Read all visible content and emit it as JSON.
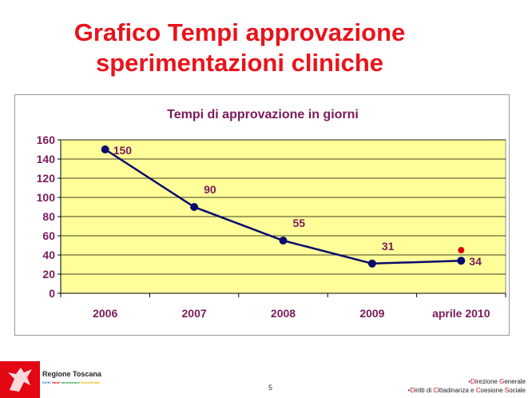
{
  "slide": {
    "title_line1": "Grafico Tempi approvazione",
    "title_line2": "sperimentazioni cliniche",
    "page_number": "5"
  },
  "footer": {
    "org_name": "Regione Toscana",
    "tagline": [
      "Diritti",
      "Valori",
      "Innovazione",
      "Sostenibilità"
    ],
    "tagline_colors": [
      "#2a7fd4",
      "#e30613",
      "#1a9a3a",
      "#f0b400"
    ],
    "dept_line1": {
      "bullet": "•",
      "parts": [
        "D",
        "irezione ",
        "G",
        "enerale"
      ]
    },
    "dept_line2": {
      "bullet": "•",
      "parts": [
        "D",
        "iritti di ",
        "C",
        "ittadinanza e ",
        "C",
        "oesione ",
        "S",
        "ociale"
      ]
    }
  },
  "chart_data": {
    "type": "line",
    "title": "Tempi di approvazione in giorni",
    "categories": [
      "2006",
      "2007",
      "2008",
      "2009",
      "aprile 2010"
    ],
    "series": [
      {
        "values": [
          150,
          90,
          55,
          31,
          34
        ],
        "color": "#0a0a6e",
        "data_labels": true
      },
      {
        "values": [
          null,
          null,
          null,
          null,
          45
        ],
        "color": "#e00000",
        "marker_only": true
      }
    ],
    "ylim": [
      0,
      160
    ],
    "yticks": [
      0,
      20,
      40,
      60,
      80,
      100,
      120,
      140,
      160
    ],
    "grid": true,
    "plot_background": "#ffff99",
    "text_color": "#7a1a5a",
    "legend": "none"
  }
}
